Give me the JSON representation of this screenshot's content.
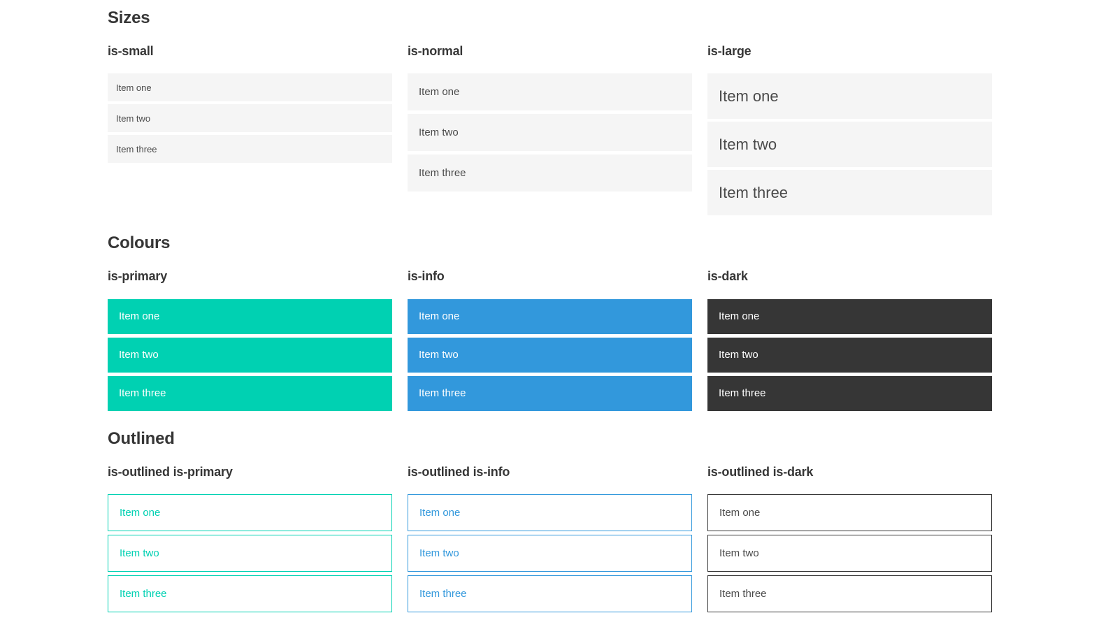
{
  "page": {
    "sections": [
      {
        "title": "Sizes",
        "groups": [
          {
            "label": "is-small",
            "items": [
              "Item one",
              "Item two",
              "Item three"
            ]
          },
          {
            "label": "is-normal",
            "items": [
              "Item one",
              "Item two",
              "Item three"
            ]
          },
          {
            "label": "is-large",
            "items": [
              "Item one",
              "Item two",
              "Item three"
            ]
          }
        ]
      },
      {
        "title": "Colours",
        "groups": [
          {
            "label": "is-primary",
            "items": [
              "Item one",
              "Item two",
              "Item three"
            ]
          },
          {
            "label": "is-info",
            "items": [
              "Item one",
              "Item two",
              "Item three"
            ]
          },
          {
            "label": "is-dark",
            "items": [
              "Item one",
              "Item two",
              "Item three"
            ]
          }
        ]
      },
      {
        "title": "Outlined",
        "groups": [
          {
            "label": "is-outlined is-primary",
            "items": [
              "Item one",
              "Item two",
              "Item three"
            ]
          },
          {
            "label": "is-outlined is-info",
            "items": [
              "Item one",
              "Item two",
              "Item three"
            ]
          },
          {
            "label": "is-outlined is-dark",
            "items": [
              "Item one",
              "Item two",
              "Item three"
            ]
          }
        ]
      }
    ]
  },
  "colors": {
    "primary": "#00d1b2",
    "info": "#3298dc",
    "dark": "#363636",
    "light-bg": "#f5f5f5",
    "item-text": "#4a4a4a",
    "heading-text": "#363636",
    "white": "#ffffff"
  }
}
